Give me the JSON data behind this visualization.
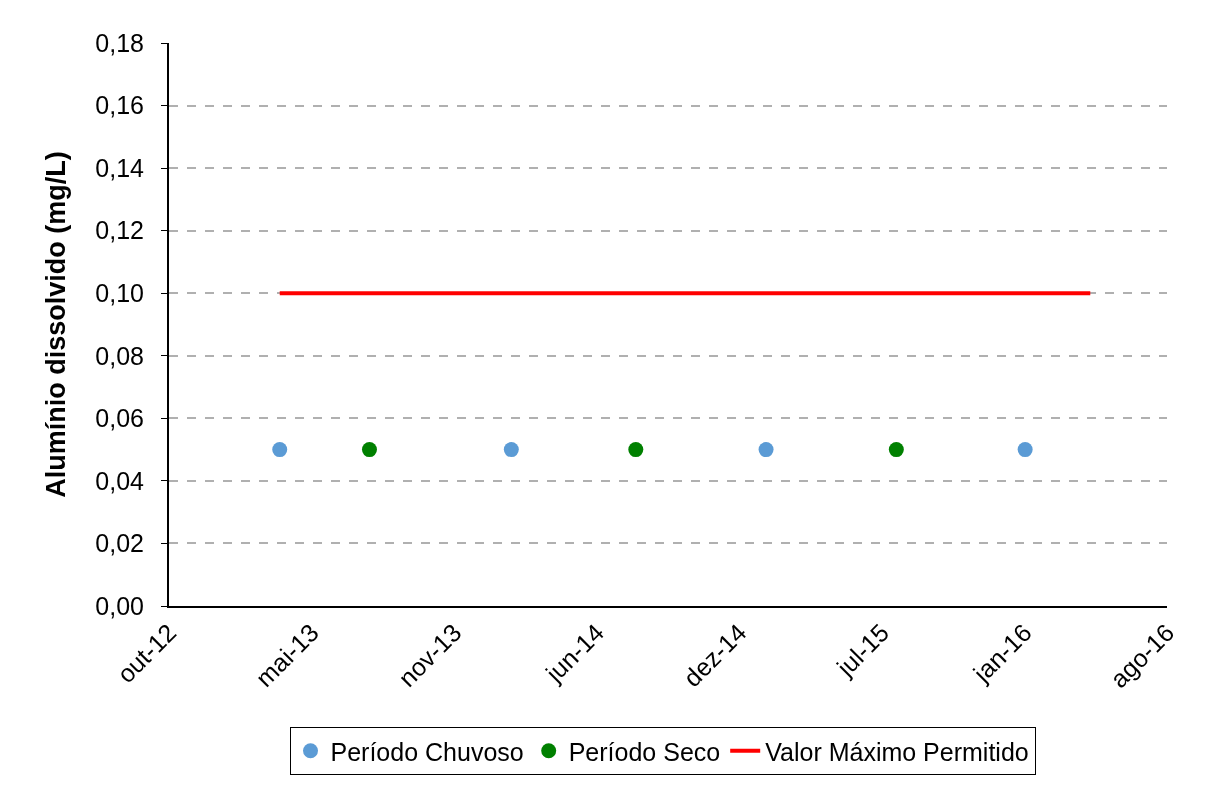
{
  "chart_data": {
    "type": "scatter",
    "ylabel": "Alumínio dissolvido (mg/L)",
    "xlim": [
      "2012-10-24",
      "2016-08-03"
    ],
    "xticks": [
      {
        "value": "2012-10-24",
        "label": "out-12"
      },
      {
        "value": "2013-05-09",
        "label": "mai-13"
      },
      {
        "value": "2013-11-22",
        "label": "nov-13"
      },
      {
        "value": "2014-06-07",
        "label": "jun-14"
      },
      {
        "value": "2014-12-21",
        "label": "dez-14"
      },
      {
        "value": "2015-07-06",
        "label": "jul-15"
      },
      {
        "value": "2016-01-19",
        "label": "jan-16"
      },
      {
        "value": "2016-08-03",
        "label": "ago-16"
      }
    ],
    "ylim": [
      0,
      0.18
    ],
    "yticks": [
      {
        "value": 0,
        "label": "0,00"
      },
      {
        "value": 0.02,
        "label": "0,02"
      },
      {
        "value": 0.04,
        "label": "0,04"
      },
      {
        "value": 0.06,
        "label": "0,06"
      },
      {
        "value": 0.08,
        "label": "0,08"
      },
      {
        "value": 0.1,
        "label": "0,10"
      },
      {
        "value": 0.12,
        "label": "0,12"
      },
      {
        "value": 0.14,
        "label": "0,14"
      },
      {
        "value": 0.16,
        "label": "0,16"
      },
      {
        "value": 0.18,
        "label": "0,18"
      }
    ],
    "grid": "y",
    "legend": "bottom",
    "series": [
      {
        "name": "Período Chuvoso",
        "color": "#5b9bd5",
        "marker": "circle",
        "x": [
          "2013-03-26",
          "2014-02-09",
          "2015-01-27",
          "2016-01-20"
        ],
        "values": [
          0.05,
          0.05,
          0.05,
          0.05
        ]
      },
      {
        "name": "Período Seco",
        "color": "#008000",
        "marker": "circle",
        "x": [
          "2013-07-28",
          "2014-07-31",
          "2015-07-26"
        ],
        "values": [
          0.05,
          0.05,
          0.05
        ]
      },
      {
        "name": "Valor Máximo Permitido",
        "type": "line",
        "color": "#ff0000",
        "line_style": "solid",
        "x": [
          "2013-03-26",
          "2016-04-19"
        ],
        "values": [
          0.1,
          0.1
        ]
      }
    ]
  }
}
